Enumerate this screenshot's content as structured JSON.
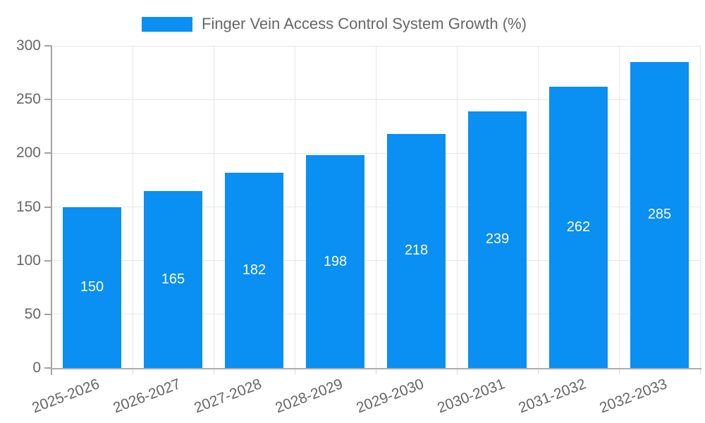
{
  "chart_data": {
    "type": "bar",
    "title": "",
    "series_name": "Finger Vein Access Control System Growth (%)",
    "categories": [
      "2025-2026",
      "2026-2027",
      "2027-2028",
      "2028-2029",
      "2029-2030",
      "2030-2031",
      "2031-2032",
      "2032-2033"
    ],
    "values": [
      150,
      165,
      182,
      198,
      218,
      239,
      262,
      285
    ],
    "xlabel": "",
    "ylabel": "",
    "ylim": [
      0,
      300
    ],
    "y_ticks": [
      0,
      50,
      100,
      150,
      200,
      250,
      300
    ],
    "grid": true,
    "legend_position": "top",
    "colors": {
      "bar": "#0a8ff2",
      "tick_text": "#666666",
      "value_text": "#ffffff",
      "gridline": "#e7e7e7",
      "axis": "#a3a3a3",
      "background": "#ffffff"
    }
  }
}
